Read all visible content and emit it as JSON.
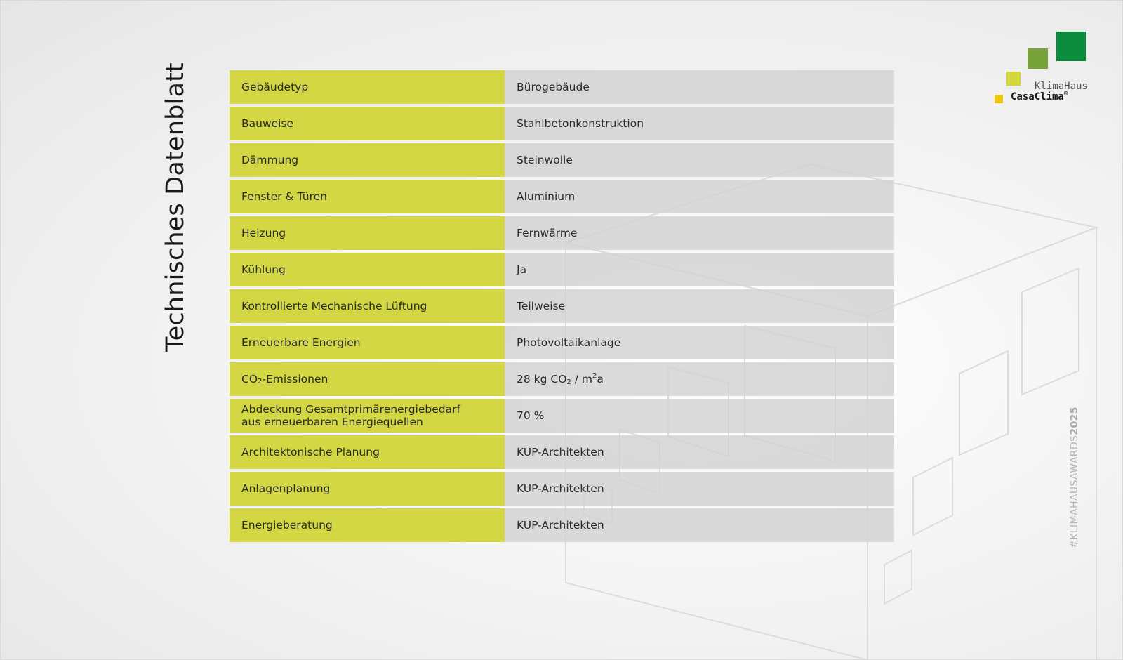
{
  "title": "Technisches Datenblatt",
  "rows": [
    {
      "label": "Gebäudetyp",
      "value": "Bürogebäude"
    },
    {
      "label": "Bauweise",
      "value": "Stahlbetonkonstruktion"
    },
    {
      "label": "Dämmung",
      "value": "Steinwolle"
    },
    {
      "label": "Fenster & Türen",
      "value": "Aluminium"
    },
    {
      "label": "Heizung",
      "value": "Fernwärme"
    },
    {
      "label": "Kühlung",
      "value": "Ja"
    },
    {
      "label": "Kontrollierte Mechanische Lüftung",
      "value": "Teilweise"
    },
    {
      "label": "Erneuerbare Energien",
      "value": "Photovoltaikanlage"
    },
    {
      "label": "CO₂-Emissionen",
      "value": "28 kg CO₂ / m²a"
    },
    {
      "label": "Abdeckung Gesamtprimärenergiebedarf aus erneuerbaren Energiequellen",
      "value": "70 %"
    },
    {
      "label": "Architektonische Planung",
      "value": "KUP-Architekten"
    },
    {
      "label": "Anlagenplanung",
      "value": "KUP-Architekten"
    },
    {
      "label": "Energieberatung",
      "value": "KUP-Architekten"
    }
  ],
  "co2": {
    "label_prefix": "CO",
    "label_sub": "2",
    "label_suffix": "-Emissionen",
    "value_prefix": "28 kg CO",
    "value_sub": "2",
    "value_mid": " / m",
    "value_sup": "2",
    "value_suffix": "a"
  },
  "logo": {
    "line1": "KlimaHaus",
    "line2": "CasaClima",
    "reg": "®"
  },
  "hashtag": {
    "text": "#KLIMAHAUSAWARDS",
    "year": "2025"
  },
  "colors": {
    "label_bg": "#d3d744",
    "value_bg": "#d2d2d2",
    "logo_dark_green": "#0b8c3c",
    "logo_green": "#78a33a",
    "logo_lime": "#d2d63a",
    "logo_yellow": "#f2c40f"
  }
}
